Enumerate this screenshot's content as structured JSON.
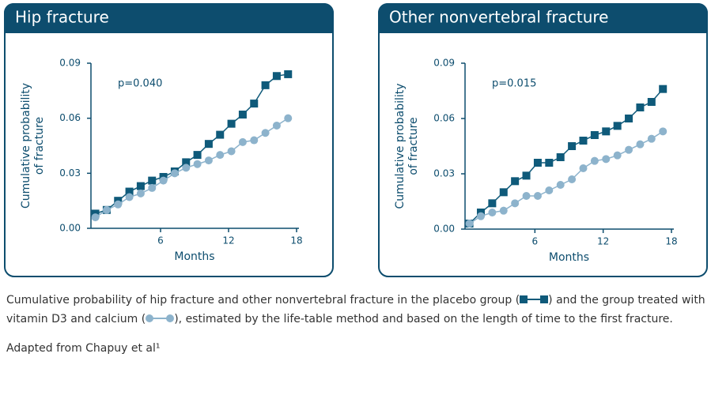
{
  "chart_data": [
    {
      "type": "line",
      "title": "Hip fracture",
      "annotation": "p=0.040",
      "ylabel": [
        "Cumulative probability",
        "of fracture"
      ],
      "xlabel": "Months",
      "xlim": [
        0,
        18
      ],
      "xticks": [
        6,
        12,
        18
      ],
      "ylim": [
        0,
        0.09
      ],
      "yticks": [
        {
          "value": 0,
          "label": "0.00"
        },
        {
          "value": 0.03,
          "label": "0.03"
        },
        {
          "value": 0.06,
          "label": "0.06"
        },
        {
          "value": 0.09,
          "label": "0.09"
        }
      ],
      "x": [
        0.25,
        1.25,
        2.25,
        3.25,
        4.25,
        5.25,
        6.25,
        7.25,
        8.25,
        9.25,
        10.25,
        11.25,
        12.25,
        13.25,
        14.25,
        15.25,
        16.25,
        17.25
      ],
      "series": [
        {
          "color": "#0f5a7a",
          "marker": "square",
          "values": [
            0.008,
            0.01,
            0.015,
            0.02,
            0.023,
            0.026,
            0.028,
            0.031,
            0.036,
            0.04,
            0.046,
            0.051,
            0.057,
            0.062,
            0.068,
            0.078,
            0.083,
            0.084
          ]
        },
        {
          "color": "#8db3cc",
          "marker": "circle",
          "values": [
            0.006,
            0.01,
            0.013,
            0.017,
            0.019,
            0.022,
            0.026,
            0.03,
            0.033,
            0.035,
            0.037,
            0.04,
            0.042,
            0.047,
            0.048,
            0.052,
            0.056,
            0.06
          ]
        }
      ]
    },
    {
      "type": "line",
      "title": "Other nonvertebral fracture",
      "annotation": "p=0.015",
      "ylabel": [
        "Cumulative probability",
        "of fracture"
      ],
      "xlabel": "Months",
      "xlim": [
        0,
        18
      ],
      "xticks": [
        6,
        12,
        18
      ],
      "ylim": [
        0,
        0.09
      ],
      "yticks": [
        {
          "value": 0,
          "label": "0.00"
        },
        {
          "value": 0.03,
          "label": "0.03"
        },
        {
          "value": 0.06,
          "label": "0.06"
        },
        {
          "value": 0.09,
          "label": "0.09"
        }
      ],
      "x": [
        0.25,
        1.25,
        2.25,
        3.25,
        4.25,
        5.25,
        6.25,
        7.25,
        8.25,
        9.25,
        10.25,
        11.25,
        12.25,
        13.25,
        14.25,
        15.25,
        16.25,
        17.25
      ],
      "series": [
        {
          "color": "#0f5a7a",
          "marker": "square",
          "values": [
            0.003,
            0.009,
            0.014,
            0.02,
            0.026,
            0.029,
            0.036,
            0.036,
            0.039,
            0.045,
            0.048,
            0.051,
            0.053,
            0.056,
            0.06,
            0.066,
            0.069,
            0.076
          ]
        },
        {
          "color": "#8db3cc",
          "marker": "circle",
          "values": [
            0.003,
            0.007,
            0.009,
            0.01,
            0.014,
            0.018,
            0.018,
            0.021,
            0.024,
            0.027,
            0.033,
            0.037,
            0.038,
            0.04,
            0.043,
            0.046,
            0.049,
            0.053
          ]
        }
      ]
    }
  ],
  "caption": [
    "Cumulative probability of hip fracture and other nonvertebral fracture in the placebo group (",
    ") and the group treated with vitamin D3 and calcium (",
    "), estimated by the life-table method and based on the length of time to the first fracture."
  ],
  "source": "Adapted from Chapuy et al¹"
}
